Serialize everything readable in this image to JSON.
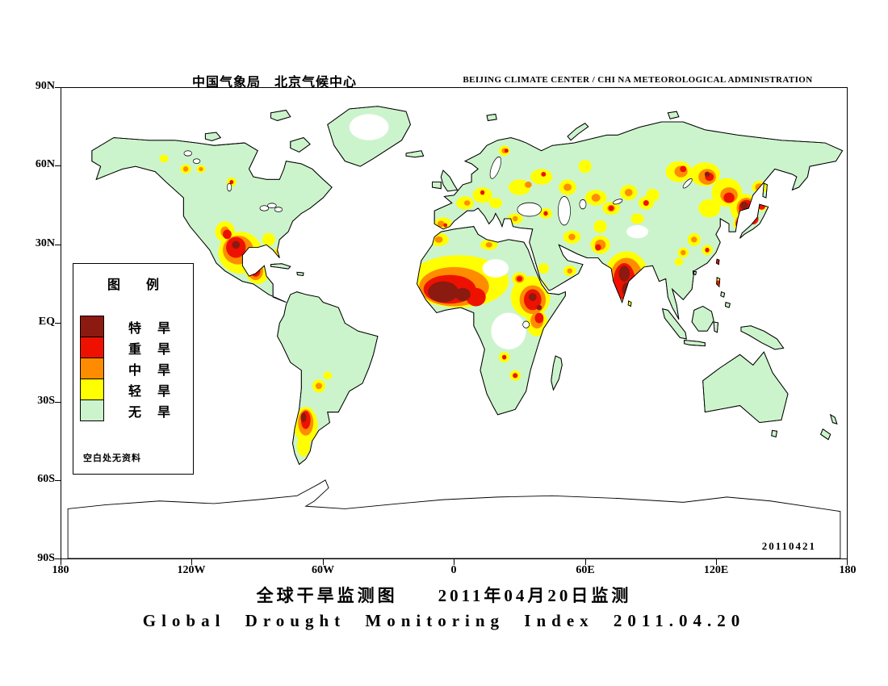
{
  "header": {
    "title_cn": "中国气象局　北京气候中心",
    "title_en": "BEIJING CLIMATE CENTER / CHI NA METEOROLOGICAL ADMINISTRATION"
  },
  "axis": {
    "y_ticks": [
      "90N",
      "60N",
      "30N",
      "EQ",
      "30S",
      "60S",
      "90S"
    ],
    "x_ticks": [
      "180",
      "120W",
      "60W",
      "0",
      "60E",
      "120E",
      "180"
    ]
  },
  "legend": {
    "title": "图　　例",
    "items": [
      {
        "label": "特　旱",
        "color": "#8b1a10"
      },
      {
        "label": "重　旱",
        "color": "#ee1100"
      },
      {
        "label": "中　旱",
        "color": "#ff8c00"
      },
      {
        "label": "轻　旱",
        "color": "#ffff00"
      },
      {
        "label": "无　旱",
        "color": "#ccf4cc"
      }
    ],
    "note": "空白处无资料"
  },
  "map": {
    "date_stamp": "20110421",
    "land_color": "#ccf4cc",
    "no_data_color": "#ffffff"
  },
  "footer": {
    "title_cn": "全球干旱监测图　　2011年04月20日监测",
    "title_en": "Global Drought Monitoring Index  2011.04.20"
  },
  "drought_regions": {
    "light": [
      [
        82,
        63,
        10,
        8
      ],
      [
        90,
        70,
        5.5,
        5
      ],
      [
        75,
        55,
        4.5,
        4
      ],
      [
        95,
        58,
        3,
        2.5
      ],
      [
        99.5,
        62.5,
        2,
        1.5
      ],
      [
        57,
        31,
        2.5,
        1.8
      ],
      [
        64,
        31,
        2,
        1.5
      ],
      [
        78,
        36,
        2.2,
        1.8
      ],
      [
        47,
        27,
        2,
        1.5
      ],
      [
        103,
        107,
        2,
        2
      ],
      [
        112,
        129,
        5.5,
        7
      ],
      [
        111,
        137,
        3,
        4
      ],
      [
        118,
        114,
        3,
        2.5
      ],
      [
        122,
        110,
        2,
        1.5
      ],
      [
        182,
        74,
        23,
        10
      ],
      [
        173,
        58,
        4.5,
        2.5
      ],
      [
        196,
        60,
        4,
        2
      ],
      [
        215,
        80,
        9,
        8
      ],
      [
        218,
        90,
        5,
        5
      ],
      [
        210,
        73,
        3.5,
        2.5
      ],
      [
        208,
        110,
        2.5,
        2
      ],
      [
        203,
        103,
        2.5,
        2
      ],
      [
        175,
        52,
        4,
        2.5
      ],
      [
        185,
        44,
        4,
        2.5
      ],
      [
        193,
        41,
        4.5,
        3
      ],
      [
        199,
        44,
        3,
        2
      ],
      [
        210,
        38,
        5,
        3
      ],
      [
        220,
        34,
        5,
        3
      ],
      [
        232,
        38,
        4,
        3
      ],
      [
        240,
        30,
        3,
        2.5
      ],
      [
        203,
        24,
        2.5,
        2
      ],
      [
        208,
        50,
        3.5,
        2
      ],
      [
        222,
        48,
        3,
        2
      ],
      [
        221,
        69,
        2.5,
        2
      ],
      [
        233,
        70,
        3,
        2
      ],
      [
        234,
        57,
        4,
        2.5
      ],
      [
        247,
        60,
        4.5,
        3.5
      ],
      [
        247,
        53,
        3,
        2.5
      ],
      [
        245,
        42,
        5,
        3
      ],
      [
        252,
        46,
        4,
        2.5
      ],
      [
        260,
        40,
        4,
        3
      ],
      [
        268,
        44,
        3.5,
        2.5
      ],
      [
        259,
        72,
        10,
        9.5
      ],
      [
        260.5,
        82.5,
        1.5,
        1.2
      ],
      [
        264,
        50,
        3,
        2
      ],
      [
        271,
        41,
        3,
        2.5
      ],
      [
        283,
        32,
        6,
        4
      ],
      [
        295,
        33,
        7,
        4.5
      ],
      [
        305,
        40,
        7,
        5.5
      ],
      [
        297,
        46,
        5,
        3.5
      ],
      [
        313,
        46,
        6.5,
        5.5
      ],
      [
        320,
        38,
        3.5,
        2.5
      ],
      [
        311,
        52,
        3,
        2.5
      ],
      [
        321,
        45,
        2.5,
        2
      ],
      [
        290,
        58,
        3,
        2.5
      ],
      [
        296,
        62,
        2.5,
        2
      ],
      [
        285,
        63,
        2.5,
        2
      ],
      [
        283,
        66.5,
        2,
        1.5
      ],
      [
        301,
        66.5,
        2,
        1.6
      ],
      [
        301,
        74.5,
        1.8,
        1.5
      ]
    ],
    "moderate": [
      [
        81,
        62,
        7,
        5.5
      ],
      [
        89,
        70,
        3.5,
        3.5
      ],
      [
        75,
        55,
        2,
        2
      ],
      [
        64,
        31,
        1,
        0.8
      ],
      [
        57,
        31,
        1.2,
        1
      ],
      [
        99.5,
        62.5,
        1,
        0.8
      ],
      [
        112,
        128,
        3.5,
        5
      ],
      [
        118,
        114,
        1.5,
        1.2
      ],
      [
        103,
        107,
        1.2,
        1.2
      ],
      [
        180,
        76,
        16,
        7.5
      ],
      [
        173,
        58,
        1.8,
        1.2
      ],
      [
        196,
        60,
        1.5,
        1
      ],
      [
        216,
        81,
        6,
        5.5
      ],
      [
        218,
        89,
        3,
        3
      ],
      [
        210,
        73,
        2,
        1.5
      ],
      [
        208,
        110,
        1.3,
        1
      ],
      [
        174,
        52,
        1.6,
        1.2
      ],
      [
        186,
        44,
        1.4,
        1
      ],
      [
        214,
        37,
        1.6,
        1.2
      ],
      [
        232,
        38,
        1.8,
        1.4
      ],
      [
        203,
        24,
        1.2,
        1
      ],
      [
        208,
        50,
        1.2,
        1
      ],
      [
        234,
        57,
        1.6,
        1.2
      ],
      [
        247,
        60,
        2.5,
        2
      ],
      [
        259,
        73,
        7.5,
        8
      ],
      [
        245,
        42,
        2,
        1.5
      ],
      [
        260,
        40,
        1.8,
        1.4
      ],
      [
        284,
        32,
        3,
        2.2
      ],
      [
        296,
        34,
        4,
        3
      ],
      [
        306,
        41,
        4,
        3
      ],
      [
        314,
        46,
        4.5,
        4
      ],
      [
        320,
        38,
        2,
        1.5
      ],
      [
        311,
        51,
        2,
        1.8
      ],
      [
        290,
        58,
        1.4,
        1.1
      ],
      [
        285,
        63,
        1.2,
        1
      ],
      [
        233,
        70,
        1.2,
        1
      ],
      [
        321,
        45,
        1.4,
        1.2
      ],
      [
        252,
        46,
        1.8,
        1.3
      ]
    ],
    "severe": [
      [
        80,
        61,
        4.5,
        4
      ],
      [
        89,
        70,
        2.2,
        2.2
      ],
      [
        76,
        56,
        2,
        1.8
      ],
      [
        78,
        36,
        0.9,
        0.8
      ],
      [
        112,
        127,
        2.2,
        3.5
      ],
      [
        103,
        107,
        0.8,
        0.8
      ],
      [
        178,
        77,
        12,
        5.5
      ],
      [
        190,
        80,
        4.5,
        3.5
      ],
      [
        176,
        52.5,
        0.9,
        0.8
      ],
      [
        193,
        40,
        1,
        0.9
      ],
      [
        221,
        33,
        1.1,
        0.9
      ],
      [
        204,
        24,
        0.9,
        0.8
      ],
      [
        216,
        81,
        4,
        4
      ],
      [
        219,
        88,
        2,
        2
      ],
      [
        210,
        73,
        1.3,
        1
      ],
      [
        208,
        110,
        1,
        0.9
      ],
      [
        203,
        103,
        1,
        0.9
      ],
      [
        246,
        61,
        1.4,
        1.2
      ],
      [
        258,
        74,
        5,
        7
      ],
      [
        252,
        46,
        1.2,
        1
      ],
      [
        268,
        44,
        1.3,
        1.1
      ],
      [
        285,
        31,
        1.5,
        1.2
      ],
      [
        297,
        34,
        2,
        1.6
      ],
      [
        306,
        42,
        2.5,
        2
      ],
      [
        314,
        46,
        3.5,
        3.2
      ],
      [
        317,
        50,
        2.5,
        2.2
      ],
      [
        311,
        52,
        2,
        1.8
      ],
      [
        321,
        45,
        1.8,
        1.6
      ],
      [
        301,
        66.5,
        1.2,
        1
      ],
      [
        301,
        74.5,
        1,
        0.9
      ],
      [
        296,
        62,
        1,
        0.9
      ],
      [
        222,
        48,
        1,
        0.9
      ]
    ],
    "extreme": [
      [
        80,
        60,
        1.8,
        1.5
      ],
      [
        111,
        126,
        1.3,
        1.8
      ],
      [
        175,
        78,
        7,
        4
      ],
      [
        184,
        79,
        3.5,
        2.5
      ],
      [
        216,
        80,
        1.8,
        1.5
      ],
      [
        219,
        84,
        1.2,
        1
      ],
      [
        258,
        71,
        2.5,
        3
      ],
      [
        259,
        77,
        2,
        2.5
      ],
      [
        313,
        45,
        1.8,
        1.5
      ],
      [
        296,
        33,
        1.2,
        1
      ],
      [
        314,
        47.5,
        1.3,
        1.1
      ]
    ]
  }
}
